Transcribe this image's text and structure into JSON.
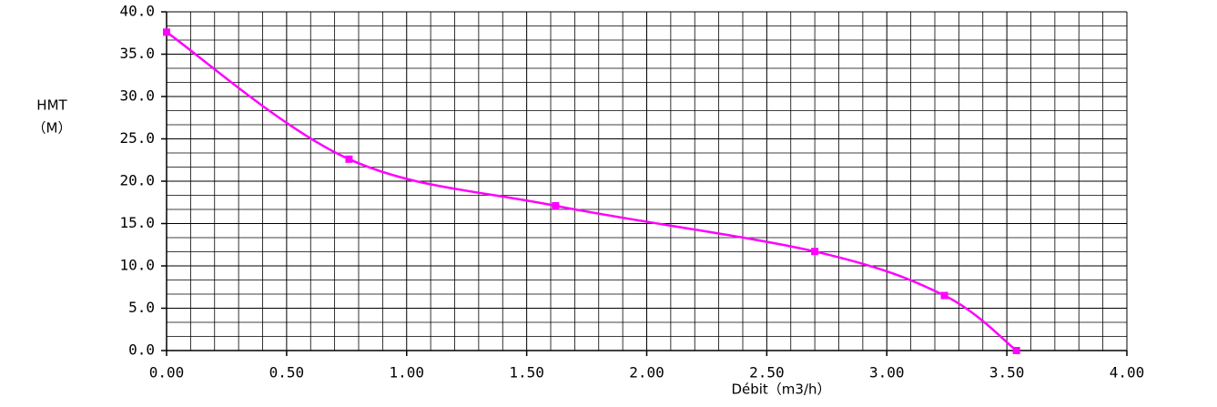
{
  "chart_data": {
    "type": "line",
    "y_label": "HMT",
    "y_unit": "（M）",
    "x_label": "Débit（m3/h）",
    "x": [
      0,
      0.76,
      1.62,
      2.7,
      3.24,
      3.54
    ],
    "values": [
      37.6,
      22.6,
      17.1,
      11.7,
      6.5,
      0
    ],
    "color": "#ff00ff",
    "xlim": [
      0,
      4
    ],
    "xticks": [
      {
        "value": 0,
        "label": "0.00"
      },
      {
        "value": 0.5,
        "label": "0.50"
      },
      {
        "value": 1,
        "label": "1.00"
      },
      {
        "value": 1.5,
        "label": "1.50"
      },
      {
        "value": 2,
        "label": "2.00"
      },
      {
        "value": 2.5,
        "label": "2.50"
      },
      {
        "value": 3,
        "label": "3.00"
      },
      {
        "value": 3.5,
        "label": "3.50"
      },
      {
        "value": 4,
        "label": "4.00"
      }
    ],
    "ylim": [
      0,
      40
    ],
    "yticks": [
      {
        "value": 0,
        "label": "0.0"
      },
      {
        "value": 5,
        "label": "5.0"
      },
      {
        "value": 10,
        "label": "10.0"
      },
      {
        "value": 15,
        "label": "15.0"
      },
      {
        "value": 20,
        "label": "20.0"
      },
      {
        "value": 25,
        "label": "25.0"
      },
      {
        "value": 30,
        "label": "30.0"
      },
      {
        "value": 35,
        "label": "35.0"
      },
      {
        "value": 40,
        "label": "40.0"
      }
    ],
    "grid": true
  }
}
